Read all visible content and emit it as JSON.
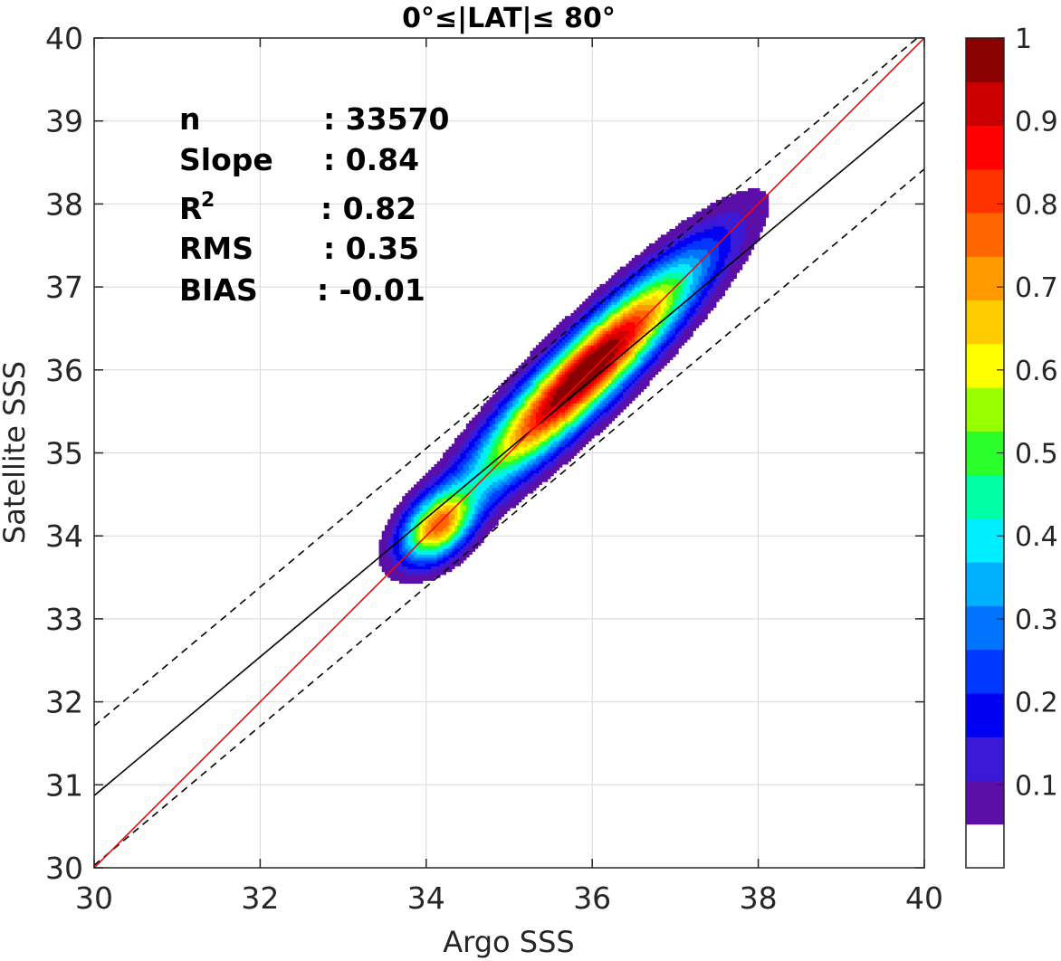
{
  "chart_data": {
    "type": "heatmap",
    "title": "0°≤|LAT|≤ 80°",
    "xlabel": "Argo SSS",
    "ylabel": "Satellite SSS",
    "xlim": [
      30,
      40
    ],
    "ylim": [
      30,
      40
    ],
    "xticks": [
      "30",
      "32",
      "34",
      "36",
      "38",
      "40"
    ],
    "yticks": [
      "30",
      "31",
      "32",
      "33",
      "34",
      "35",
      "36",
      "37",
      "38",
      "39",
      "40"
    ],
    "grid": true,
    "stats": [
      {
        "label": "n",
        "value": ": 33570"
      },
      {
        "label": "Slope",
        "value": ": 0.84"
      },
      {
        "label": "R",
        "sup": "2",
        "value": ": 0.82"
      },
      {
        "label": "RMS",
        "value": ": 0.35"
      },
      {
        "label": "BIAS",
        "value": ": -0.01"
      }
    ],
    "lines": {
      "one_to_one": {
        "color": "#ff0000",
        "x": [
          30,
          40
        ],
        "y": [
          30,
          40
        ]
      },
      "fit": {
        "color": "#000000",
        "x": [
          30,
          40
        ],
        "y": [
          30.87,
          39.23
        ]
      },
      "fit_plus": {
        "color": "#000000",
        "style": "dashed",
        "x": [
          30,
          40
        ],
        "y": [
          31.71,
          40.07
        ]
      },
      "fit_minus": {
        "color": "#000000",
        "style": "dashed",
        "x": [
          30,
          40
        ],
        "y": [
          30.03,
          38.42
        ]
      }
    },
    "density": {
      "components": [
        {
          "cx": 35.9,
          "cy": 35.95,
          "sa": 1.25,
          "sb": 0.26,
          "w": 1.0
        },
        {
          "cx": 34.12,
          "cy": 34.1,
          "sa": 0.34,
          "sb": 0.22,
          "w": 0.62
        }
      ],
      "levels": [
        0.05,
        0.1,
        0.15,
        0.2,
        0.25,
        0.3,
        0.35,
        0.4,
        0.45,
        0.5,
        0.55,
        0.6,
        0.65,
        0.7,
        0.75,
        0.8,
        0.85,
        0.9,
        0.95
      ]
    },
    "colorbar": {
      "min": 0,
      "max": 1,
      "ticks": [
        "0.1",
        "0.2",
        "0.3",
        "0.4",
        "0.5",
        "0.6",
        "0.7",
        "0.8",
        "0.9",
        "1"
      ],
      "colors": [
        "#ffffff",
        "#5b0ea8",
        "#3a1ad6",
        "#0000f2",
        "#0038ff",
        "#0073ff",
        "#00b0ff",
        "#00eeff",
        "#00ffa5",
        "#2bff2b",
        "#98ff00",
        "#ffff00",
        "#ffcc00",
        "#ff9a00",
        "#ff6600",
        "#ff3300",
        "#ff0000",
        "#cc0000",
        "#8b0000"
      ]
    }
  }
}
